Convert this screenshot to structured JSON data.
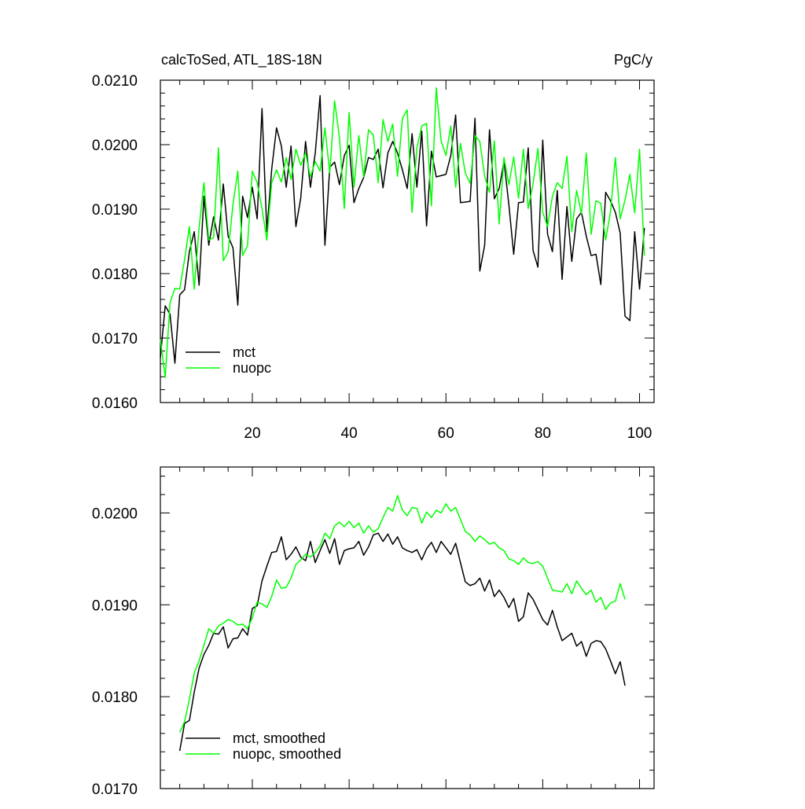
{
  "chart_data": [
    {
      "type": "line",
      "title": "calcToSed, ATL_18S-18N",
      "units_label": "PgC/y",
      "x": [
        1,
        2,
        3,
        4,
        5,
        6,
        7,
        8,
        9,
        10,
        11,
        12,
        13,
        14,
        15,
        16,
        17,
        18,
        19,
        20,
        21,
        22,
        23,
        24,
        25,
        26,
        27,
        28,
        29,
        30,
        31,
        32,
        33,
        34,
        35,
        36,
        37,
        38,
        39,
        40,
        41,
        42,
        43,
        44,
        45,
        46,
        47,
        48,
        49,
        50,
        51,
        52,
        53,
        54,
        55,
        56,
        57,
        58,
        59,
        60,
        61,
        62,
        63,
        64,
        65,
        66,
        67,
        68,
        69,
        70,
        71,
        72,
        73,
        74,
        75,
        76,
        77,
        78,
        79,
        80,
        81,
        82,
        83,
        84,
        85,
        86,
        87,
        88,
        89,
        90,
        91,
        92,
        93,
        94,
        95,
        96,
        97,
        98,
        99,
        100,
        101
      ],
      "series": [
        {
          "name": "mct",
          "color": "#000000",
          "values": [
            0.0167,
            0.0175,
            0.01737,
            0.01661,
            0.01767,
            0.01775,
            0.01834,
            0.01865,
            0.01782,
            0.0192,
            0.01844,
            0.01888,
            0.01852,
            0.01939,
            0.01858,
            0.0184,
            0.01751,
            0.0192,
            0.01887,
            0.01934,
            0.01885,
            0.02056,
            0.01865,
            0.01962,
            0.02026,
            0.01998,
            0.01934,
            0.01998,
            0.01873,
            0.01917,
            0.02005,
            0.01934,
            0.01987,
            0.02076,
            0.01844,
            0.01965,
            0.01973,
            0.01938,
            0.01983,
            0.01999,
            0.0191,
            0.01932,
            0.01949,
            0.0198,
            0.01977,
            0.01993,
            0.01933,
            0.01987,
            0.02005,
            0.01987,
            0.01961,
            0.01932,
            0.02017,
            0.01934,
            0.02021,
            0.01874,
            0.0199,
            0.0195,
            0.01952,
            0.01954,
            0.01983,
            0.02046,
            0.0191,
            0.01911,
            0.01912,
            0.02041,
            0.01804,
            0.01844,
            0.02023,
            0.01916,
            0.01932,
            0.01974,
            0.01907,
            0.0183,
            0.0191,
            0.01911,
            0.01995,
            0.01836,
            0.0181,
            0.02007,
            0.01861,
            0.01834,
            0.01929,
            0.01791,
            0.01904,
            0.01819,
            0.01885,
            0.01895,
            0.01858,
            0.01828,
            0.0183,
            0.01783,
            0.01926,
            0.01913,
            0.01895,
            0.01863,
            0.01734,
            0.01727,
            0.01865,
            0.01776,
            0.01871
          ]
        },
        {
          "name": "nuopc",
          "color": "#00ff00",
          "values": [
            0.01698,
            0.01639,
            0.01755,
            0.01777,
            0.01776,
            0.01822,
            0.01873,
            0.01776,
            0.01871,
            0.01941,
            0.01852,
            0.01856,
            0.01995,
            0.0182,
            0.01834,
            0.01907,
            0.01959,
            0.01828,
            0.01843,
            0.01959,
            0.01941,
            0.01901,
            0.01852,
            0.01941,
            0.01961,
            0.01942,
            0.0198,
            0.01946,
            0.01993,
            0.01968,
            0.01987,
            0.0195,
            0.01974,
            0.01959,
            0.02026,
            0.01956,
            0.02068,
            0.02011,
            0.01901,
            0.0205,
            0.01934,
            0.02014,
            0.0195,
            0.02023,
            0.02015,
            0.01941,
            0.02039,
            0.02005,
            0.02032,
            0.01951,
            0.02041,
            0.02054,
            0.01895,
            0.01995,
            0.02029,
            0.02033,
            0.01905,
            0.02088,
            0.02006,
            0.01983,
            0.02029,
            0.01934,
            0.02002,
            0.01956,
            0.0194,
            0.02014,
            0.02005,
            0.01951,
            0.01926,
            0.02006,
            0.01877,
            0.0198,
            0.01938,
            0.01981,
            0.01917,
            0.01993,
            0.01901,
            0.01939,
            0.01994,
            0.01895,
            0.01873,
            0.0192,
            0.01941,
            0.01932,
            0.01982,
            0.01865,
            0.01929,
            0.01893,
            0.01987,
            0.01861,
            0.01913,
            0.01909,
            0.01852,
            0.01896,
            0.0198,
            0.01885,
            0.01914,
            0.01954,
            0.01894,
            0.01993,
            0.01828
          ]
        }
      ],
      "xlim": [
        1,
        103
      ],
      "xticks": [
        20,
        40,
        60,
        80,
        100
      ],
      "xtick_labels": true,
      "ylim": [
        0.016,
        0.021
      ],
      "yticks": [
        {
          "value": 0.016,
          "label": "0.0160"
        },
        {
          "value": 0.017,
          "label": "0.0170"
        },
        {
          "value": 0.018,
          "label": "0.0180"
        },
        {
          "value": 0.019,
          "label": "0.0190"
        },
        {
          "value": 0.02,
          "label": "0.0200"
        },
        {
          "value": 0.021,
          "label": "0.0210"
        }
      ],
      "legend": "lower left"
    },
    {
      "type": "line",
      "x": [
        5,
        6,
        7,
        8,
        9,
        10,
        11,
        12,
        13,
        14,
        15,
        16,
        17,
        18,
        19,
        20,
        21,
        22,
        23,
        24,
        25,
        26,
        27,
        28,
        29,
        30,
        31,
        32,
        33,
        34,
        35,
        36,
        37,
        38,
        39,
        40,
        41,
        42,
        43,
        44,
        45,
        46,
        47,
        48,
        49,
        50,
        51,
        52,
        53,
        54,
        55,
        56,
        57,
        58,
        59,
        60,
        61,
        62,
        63,
        64,
        65,
        66,
        67,
        68,
        69,
        70,
        71,
        72,
        73,
        74,
        75,
        76,
        77,
        78,
        79,
        80,
        81,
        82,
        83,
        84,
        85,
        86,
        87,
        88,
        89,
        90,
        91,
        92,
        93,
        94,
        95,
        96,
        97
      ],
      "series": [
        {
          "name": "mct, smoothed",
          "color": "#000000",
          "values": [
            0.01741,
            0.01771,
            0.01774,
            0.01805,
            0.01831,
            0.01846,
            0.01856,
            0.01869,
            0.01868,
            0.01876,
            0.01853,
            0.01863,
            0.01864,
            0.01874,
            0.01867,
            0.01896,
            0.01899,
            0.01926,
            0.01942,
            0.01957,
            0.01958,
            0.01974,
            0.01949,
            0.01955,
            0.01963,
            0.01952,
            0.01948,
            0.01969,
            0.01946,
            0.01959,
            0.01971,
            0.01956,
            0.01972,
            0.01944,
            0.01959,
            0.01961,
            0.01962,
            0.01969,
            0.01954,
            0.01963,
            0.01976,
            0.01978,
            0.01969,
            0.01977,
            0.01966,
            0.01974,
            0.01962,
            0.01959,
            0.01957,
            0.0196,
            0.01949,
            0.01961,
            0.01968,
            0.01957,
            0.01969,
            0.01962,
            0.01955,
            0.01967,
            0.01946,
            0.01925,
            0.01921,
            0.01923,
            0.01929,
            0.01915,
            0.01927,
            0.01909,
            0.01916,
            0.01908,
            0.01897,
            0.01907,
            0.01882,
            0.01887,
            0.01913,
            0.01906,
            0.01895,
            0.01884,
            0.01878,
            0.01894,
            0.01876,
            0.01861,
            0.01865,
            0.01869,
            0.01855,
            0.0186,
            0.01844,
            0.01858,
            0.01861,
            0.0186,
            0.01852,
            0.01839,
            0.01825,
            0.01838,
            0.01812
          ]
        },
        {
          "name": "nuopc, smoothed",
          "color": "#00ff00",
          "values": [
            0.01761,
            0.01773,
            0.01797,
            0.01826,
            0.01839,
            0.01856,
            0.01874,
            0.01869,
            0.01877,
            0.0188,
            0.01884,
            0.01882,
            0.01878,
            0.01879,
            0.01874,
            0.01886,
            0.01903,
            0.01901,
            0.01897,
            0.01909,
            0.01927,
            0.01918,
            0.01919,
            0.01929,
            0.01944,
            0.01949,
            0.01955,
            0.01952,
            0.01957,
            0.01964,
            0.01978,
            0.01972,
            0.01986,
            0.0199,
            0.01985,
            0.01991,
            0.01984,
            0.01989,
            0.01978,
            0.01986,
            0.01979,
            0.01983,
            0.01995,
            0.02006,
            0.02002,
            0.02019,
            0.02003,
            0.01997,
            0.02006,
            0.02005,
            0.01989,
            0.02001,
            0.01995,
            0.02003,
            0.02,
            0.0201,
            0.02002,
            0.02006,
            0.01993,
            0.0198,
            0.01976,
            0.01969,
            0.01975,
            0.01971,
            0.01966,
            0.01968,
            0.01962,
            0.01959,
            0.0195,
            0.01948,
            0.01944,
            0.01951,
            0.01946,
            0.01945,
            0.01947,
            0.01942,
            0.01929,
            0.01916,
            0.01915,
            0.01914,
            0.01923,
            0.01912,
            0.01926,
            0.01918,
            0.01911,
            0.01916,
            0.01903,
            0.01908,
            0.01895,
            0.01902,
            0.01904,
            0.01923,
            0.01906
          ]
        }
      ],
      "xlim": [
        1,
        103
      ],
      "xticks": [
        20,
        40,
        60,
        80,
        100
      ],
      "xtick_labels": false,
      "ylim": [
        0.017,
        0.0205
      ],
      "yticks": [
        {
          "value": 0.017,
          "label": "0.0170"
        },
        {
          "value": 0.018,
          "label": "0.0180"
        },
        {
          "value": 0.019,
          "label": "0.0190"
        },
        {
          "value": 0.02,
          "label": "0.0200"
        }
      ],
      "legend": "lower left"
    }
  ]
}
